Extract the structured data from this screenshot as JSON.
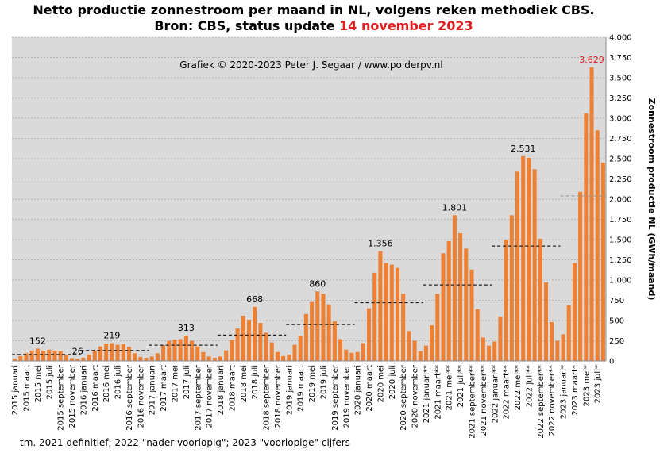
{
  "chart_data": {
    "type": "bar",
    "title": "Netto productie zonnestroom per maand in NL, volgens reken methodiek CBS.",
    "subtitle": "Bron: CBS, status update",
    "subtitle_date": "14 november 2023",
    "credit": "Grafiek  © 2020-2023 Peter J. Segaar / www.polderpv.nl",
    "footnote": "tm. 2021 definitief; 2022 \"nader voorlopig\";  2023 \"voorlopige\"  cijfers",
    "y_label": "Zonnestroom productie NL (GWh/maand)",
    "color": "#ee8033",
    "label_highlight_color": "#e02020",
    "average_color": "#222222",
    "grid": true,
    "categories": [
      "2015 januari",
      null,
      "2015 maart",
      null,
      "2015 mei",
      null,
      "2015 juli",
      null,
      "2015 september",
      null,
      "2015 november",
      null,
      "2016 januari",
      null,
      "2016 maart",
      null,
      "2016 mei",
      null,
      "2016 juli",
      null,
      "2016 september",
      null,
      "2016 november",
      null,
      "2017 januari",
      null,
      "2017 maart",
      null,
      "2017 mei",
      null,
      "2017 juli",
      null,
      "2017 september",
      null,
      "2017 november",
      null,
      "2018 januari",
      null,
      "2018 maart",
      null,
      "2018 mei",
      null,
      "2018 juli",
      null,
      "2018 september",
      null,
      "2018 november",
      null,
      "2019 januari",
      null,
      "2019 maart",
      null,
      "2019 mei",
      null,
      "2019 juli",
      null,
      "2019 september",
      null,
      "2019 november",
      null,
      "2020 januari",
      null,
      "2020 maart",
      null,
      "2020 mei",
      null,
      "2020 juli",
      null,
      "2020 september",
      null,
      "2020 november",
      null,
      "2021 januari**",
      null,
      "2021 maart**",
      null,
      "2021 mei**",
      null,
      "2021 juli**",
      null,
      "2021 september**",
      null,
      "2021 november**",
      null,
      "2022 januari**",
      null,
      "2022 maart**",
      null,
      "2022 mei**",
      null,
      "2022 juli**",
      null,
      "2022 september**",
      null,
      "2022 november**",
      null,
      "2023 januari*",
      null,
      "2023 maart*",
      null,
      "2023 mei*",
      null,
      "2023 juli*",
      null
    ],
    "values": [
      30,
      60,
      95,
      130,
      152,
      125,
      140,
      130,
      125,
      70,
      35,
      26,
      40,
      80,
      130,
      180,
      215,
      219,
      200,
      210,
      175,
      95,
      50,
      40,
      55,
      95,
      195,
      250,
      265,
      270,
      313,
      250,
      180,
      110,
      55,
      40,
      55,
      130,
      260,
      400,
      560,
      510,
      668,
      470,
      350,
      230,
      110,
      60,
      80,
      200,
      310,
      580,
      730,
      860,
      830,
      700,
      490,
      270,
      140,
      100,
      110,
      220,
      650,
      1090,
      1356,
      1210,
      1190,
      1150,
      830,
      370,
      250,
      120,
      190,
      440,
      830,
      1330,
      1480,
      1801,
      1580,
      1390,
      1130,
      640,
      290,
      190,
      240,
      550,
      1500,
      1800,
      2340,
      2531,
      2510,
      2370,
      1510,
      970,
      480,
      250,
      330,
      690,
      1210,
      2090,
      3060,
      3629,
      2850,
      2450
    ],
    "value_labels": [
      null,
      null,
      null,
      null,
      "152",
      null,
      null,
      null,
      null,
      null,
      null,
      "26",
      null,
      null,
      null,
      null,
      null,
      "219",
      null,
      null,
      null,
      null,
      null,
      null,
      null,
      null,
      null,
      null,
      null,
      null,
      "313",
      null,
      null,
      null,
      null,
      null,
      null,
      null,
      null,
      null,
      null,
      null,
      "668",
      null,
      null,
      null,
      null,
      null,
      null,
      null,
      null,
      null,
      null,
      "860",
      null,
      null,
      null,
      null,
      null,
      null,
      null,
      null,
      null,
      null,
      "1.356",
      null,
      null,
      null,
      null,
      null,
      null,
      null,
      null,
      null,
      null,
      null,
      null,
      "1.801",
      null,
      null,
      null,
      null,
      null,
      null,
      null,
      null,
      null,
      null,
      null,
      "2.531",
      null,
      null,
      null,
      null,
      null,
      null,
      null,
      null,
      null,
      null,
      null,
      "3.629",
      null,
      null
    ],
    "averages": [
      80,
      130,
      195,
      320,
      450,
      720,
      940,
      1420,
      2040
    ],
    "ylim": [
      0,
      4000
    ],
    "yticks": [
      0,
      {
        "value": 250,
        "label": "250"
      },
      {
        "value": 500,
        "label": "500"
      },
      {
        "value": 750,
        "label": "750"
      },
      {
        "value": 1000,
        "label": "1.000"
      },
      {
        "value": 1250,
        "label": "1.250"
      },
      {
        "value": 1500,
        "label": "1.500"
      },
      {
        "value": 1750,
        "label": "1.750"
      },
      {
        "value": 2000,
        "label": "2.000"
      },
      {
        "value": 2250,
        "label": "2.250"
      },
      {
        "value": 2500,
        "label": "2.500"
      },
      {
        "value": 2750,
        "label": "2.750"
      },
      {
        "value": 3000,
        "label": "3.000"
      },
      {
        "value": 3250,
        "label": "3.250"
      },
      {
        "value": 3500,
        "label": "3.500"
      },
      {
        "value": 3750,
        "label": "3.750"
      },
      {
        "value": 4000,
        "label": "4.000"
      }
    ]
  }
}
